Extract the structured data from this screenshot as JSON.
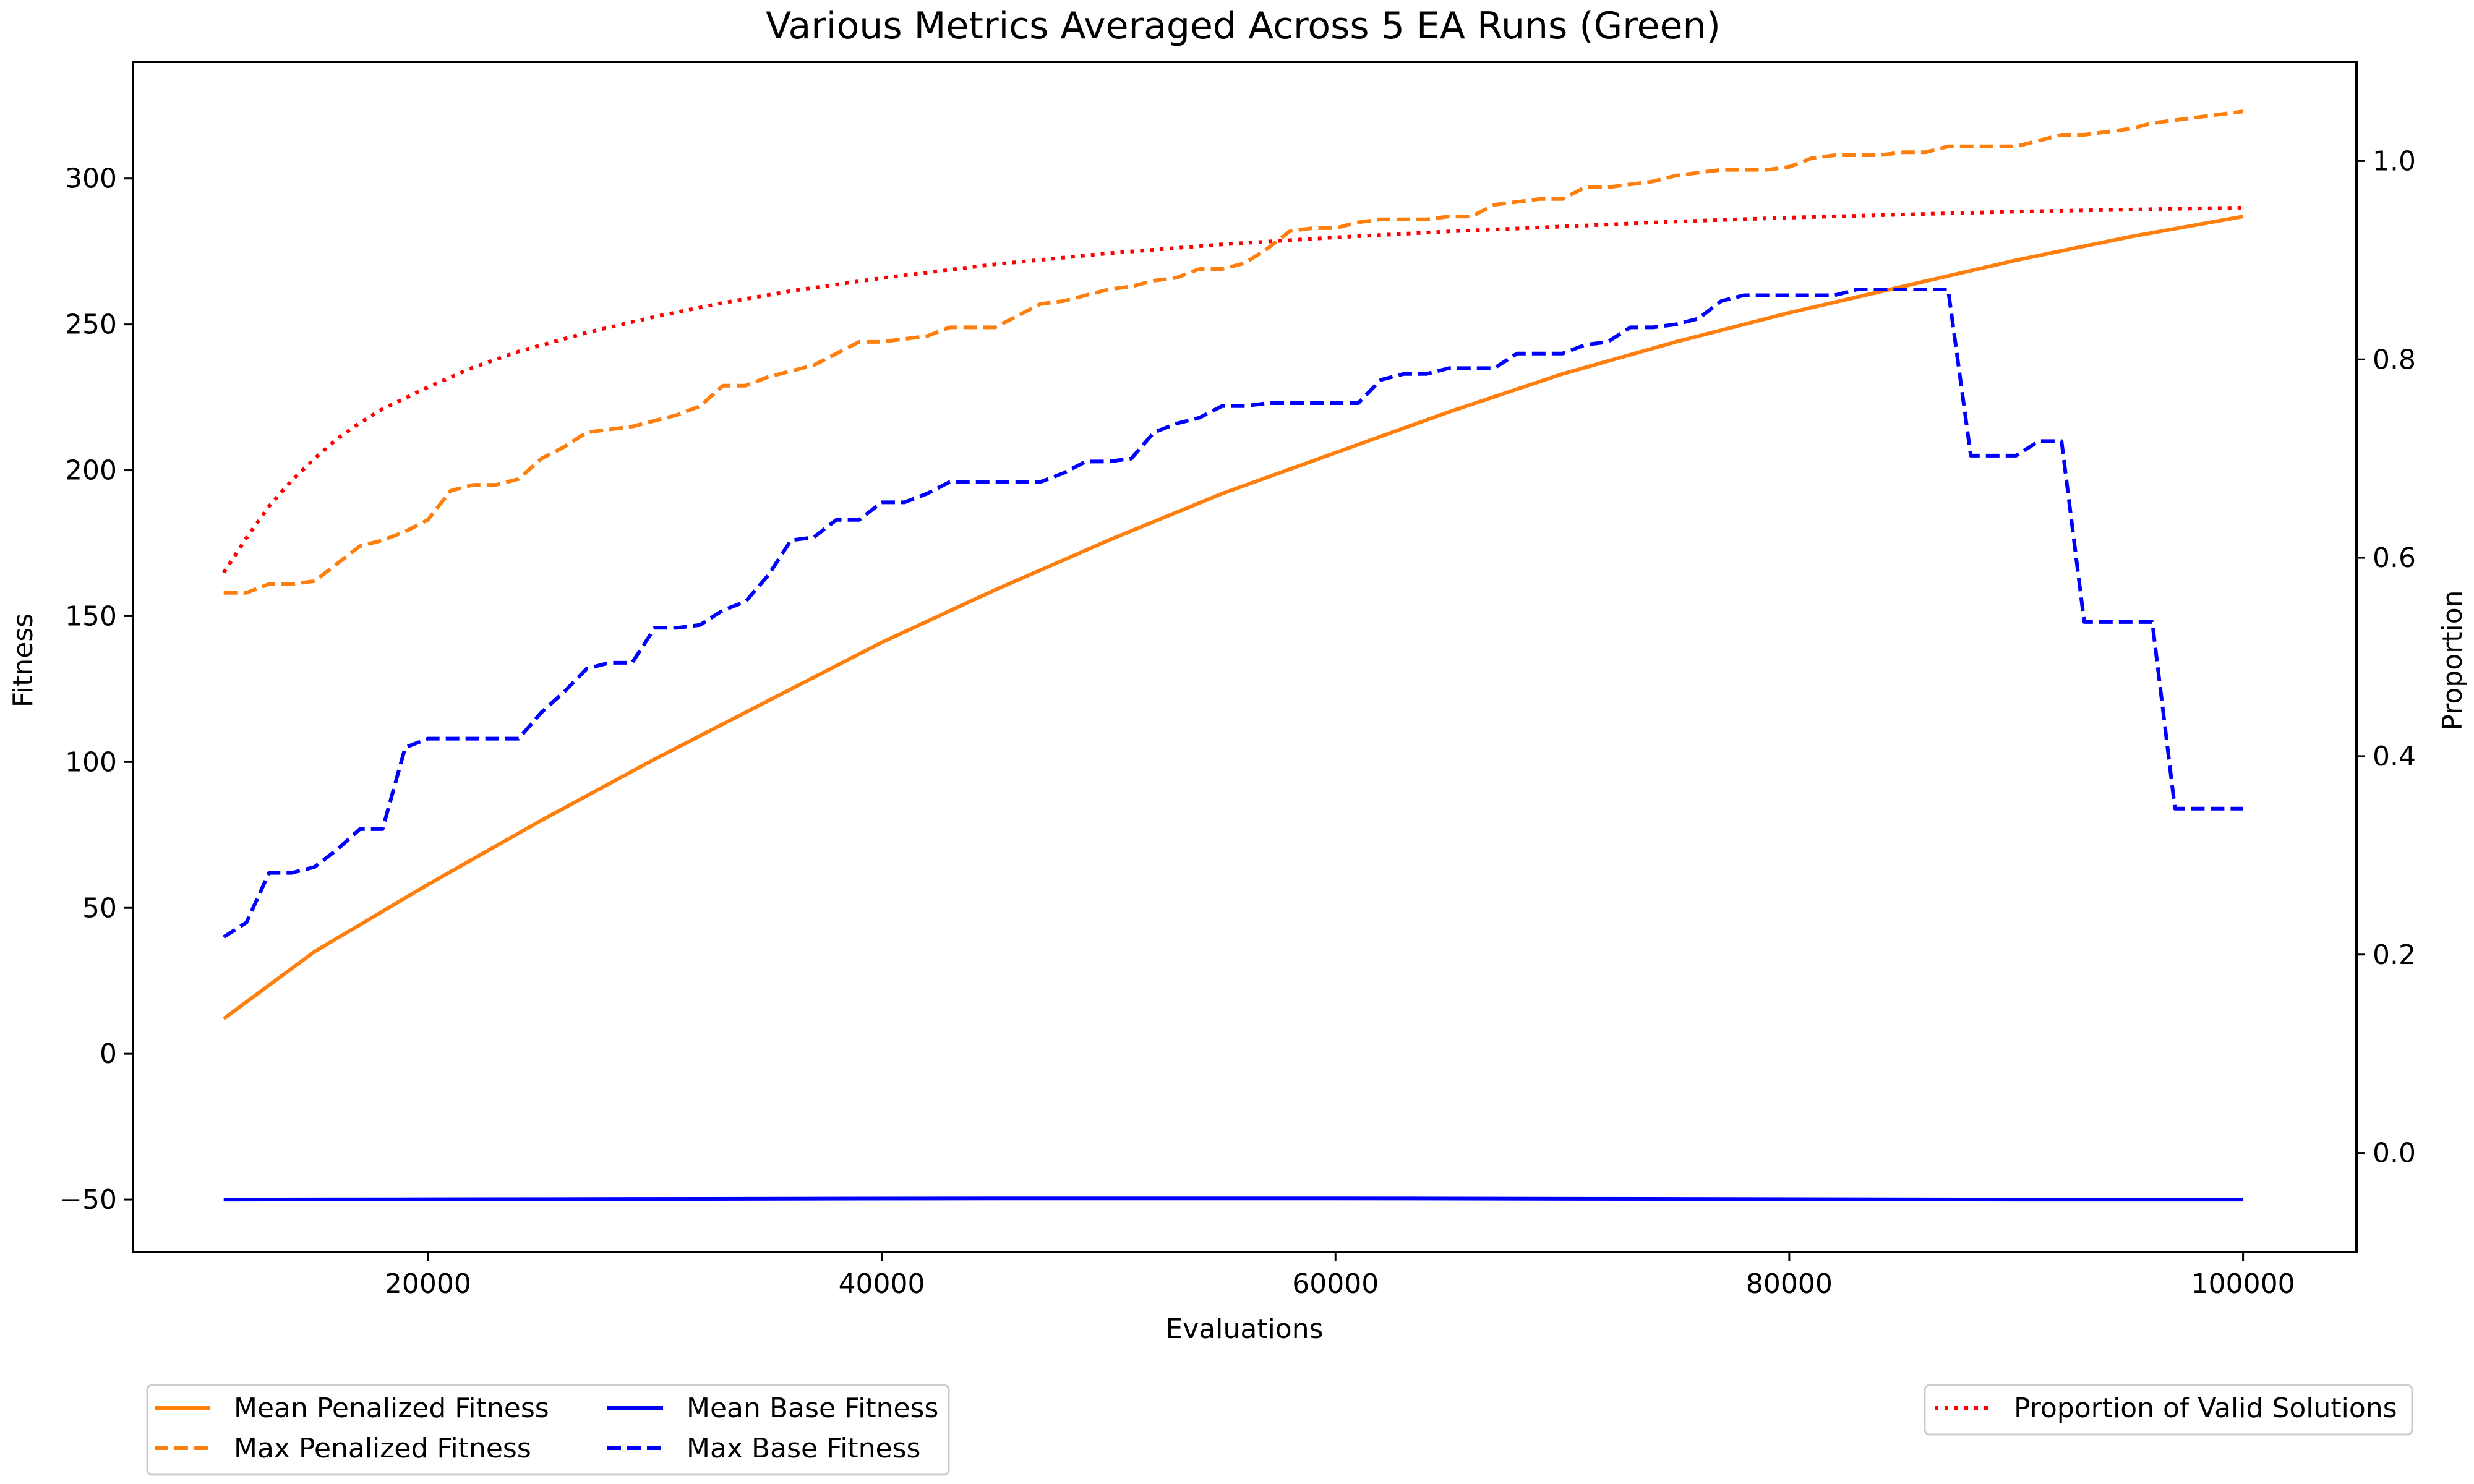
{
  "chart_data": {
    "type": "line",
    "title": "Various Metrics Averaged Across 5 EA Runs (Green)",
    "xlabel": "Evaluations",
    "ylabel": "Fitness",
    "y2label": "Proportion",
    "xlim": [
      7000,
      105000
    ],
    "ylim": [
      -68,
      340
    ],
    "y2lim": [
      -0.1,
      1.1
    ],
    "xticks": [
      20000,
      40000,
      60000,
      80000,
      100000
    ],
    "yticks": [
      -50,
      0,
      50,
      100,
      150,
      200,
      250,
      300
    ],
    "y2ticks": [
      0.0,
      0.2,
      0.4,
      0.6,
      0.8,
      1.0
    ],
    "grid": false,
    "colors": {
      "orange": "#ff7f0e",
      "blue": "#0000ff",
      "red": "#ff0000"
    },
    "series": [
      {
        "name": "Mean Penalized Fitness",
        "axis": "left",
        "color": "#ff7f0e",
        "style": "solid",
        "x": [
          11000,
          15000,
          20000,
          25000,
          30000,
          35000,
          40000,
          45000,
          50000,
          55000,
          60000,
          65000,
          70000,
          75000,
          80000,
          85000,
          90000,
          95000,
          100000
        ],
        "values": [
          12,
          35,
          58,
          80,
          101,
          121,
          141,
          159,
          176,
          192,
          206,
          220,
          233,
          244,
          254,
          263,
          272,
          280,
          287
        ]
      },
      {
        "name": "Max Penalized Fitness",
        "axis": "left",
        "color": "#ff7f0e",
        "style": "dashed",
        "x": [
          11000,
          12000,
          13000,
          14000,
          15000,
          16000,
          17000,
          18000,
          19000,
          20000,
          21000,
          22000,
          23000,
          24000,
          25000,
          26000,
          27000,
          28000,
          29000,
          30000,
          31000,
          32000,
          33000,
          34000,
          35000,
          36000,
          37000,
          38000,
          39000,
          40000,
          41000,
          42000,
          43000,
          44000,
          45000,
          46000,
          47000,
          48000,
          49000,
          50000,
          51000,
          52000,
          53000,
          54000,
          55000,
          56000,
          57000,
          58000,
          59000,
          60000,
          61000,
          62000,
          63000,
          64000,
          65000,
          66000,
          67000,
          68000,
          69000,
          70000,
          71000,
          72000,
          73000,
          74000,
          75000,
          76000,
          77000,
          78000,
          79000,
          80000,
          81000,
          82000,
          83000,
          84000,
          85000,
          86000,
          87000,
          88000,
          89000,
          90000,
          91000,
          92000,
          93000,
          94000,
          95000,
          96000,
          97000,
          98000,
          99000,
          100000
        ],
        "values": [
          158,
          158,
          161,
          161,
          162,
          168,
          174,
          176,
          179,
          183,
          193,
          195,
          195,
          197,
          204,
          208,
          213,
          214,
          215,
          217,
          219,
          222,
          229,
          229,
          232,
          234,
          236,
          240,
          244,
          244,
          245,
          246,
          249,
          249,
          249,
          253,
          257,
          258,
          260,
          262,
          263,
          265,
          266,
          269,
          269,
          271,
          276,
          282,
          283,
          283,
          285,
          286,
          286,
          286,
          287,
          287,
          291,
          292,
          293,
          293,
          297,
          297,
          298,
          299,
          301,
          302,
          303,
          303,
          303,
          304,
          307,
          308,
          308,
          308,
          309,
          309,
          311,
          311,
          311,
          311,
          313,
          315,
          315,
          316,
          317,
          319,
          320,
          321,
          322,
          323
        ]
      },
      {
        "name": "Mean Base Fitness",
        "axis": "left",
        "color": "#0000ff",
        "style": "solid",
        "x": [
          11000,
          30000,
          45000,
          60000,
          75000,
          90000,
          100000
        ],
        "values": [
          -50,
          -49.8,
          -49.6,
          -49.6,
          -49.8,
          -50,
          -50
        ]
      },
      {
        "name": "Max Base Fitness",
        "axis": "left",
        "color": "#0000ff",
        "style": "dashed",
        "x": [
          11000,
          12000,
          13000,
          14000,
          15000,
          16000,
          17000,
          18000,
          19000,
          20000,
          21000,
          22000,
          23000,
          24000,
          25000,
          26000,
          27000,
          28000,
          29000,
          30000,
          31000,
          32000,
          33000,
          34000,
          35000,
          36000,
          37000,
          38000,
          39000,
          40000,
          41000,
          42000,
          43000,
          44000,
          45000,
          46000,
          47000,
          48000,
          49000,
          50000,
          51000,
          52000,
          53000,
          54000,
          55000,
          56000,
          57000,
          58000,
          59000,
          60000,
          61000,
          62000,
          63000,
          64000,
          65000,
          66000,
          67000,
          68000,
          69000,
          70000,
          71000,
          72000,
          73000,
          74000,
          75000,
          76000,
          77000,
          78000,
          79000,
          80000,
          81000,
          82000,
          83000,
          84000,
          85000,
          86000,
          87000,
          88000,
          89000,
          90000,
          91000,
          92000,
          93000,
          94000,
          95000,
          96000,
          97000,
          98000,
          99000,
          100000
        ],
        "values": [
          40,
          45,
          62,
          62,
          64,
          70,
          77,
          77,
          105,
          108,
          108,
          108,
          108,
          108,
          117,
          124,
          132,
          134,
          134,
          146,
          146,
          147,
          152,
          155,
          164,
          176,
          177,
          183,
          183,
          189,
          189,
          192,
          196,
          196,
          196,
          196,
          196,
          199,
          203,
          203,
          204,
          213,
          216,
          218,
          222,
          222,
          223,
          223,
          223,
          223,
          223,
          231,
          233,
          233,
          235,
          235,
          235,
          240,
          240,
          240,
          243,
          244,
          249,
          249,
          250,
          252,
          258,
          260,
          260,
          260,
          260,
          260,
          262,
          262,
          262,
          262,
          262,
          205,
          205,
          205,
          210,
          210,
          148,
          148,
          148,
          148,
          84,
          84,
          84,
          84
        ]
      },
      {
        "name": "Proportion of Valid Solutions",
        "axis": "right",
        "color": "#ff0000",
        "style": "dotted",
        "x": [
          11000,
          12000,
          13000,
          14000,
          15000,
          16000,
          17000,
          18000,
          20000,
          22000,
          24000,
          27000,
          30000,
          33000,
          36000,
          40000,
          45000,
          50000,
          55000,
          60000,
          65000,
          70000,
          75000,
          80000,
          85000,
          90000,
          95000,
          100000
        ],
        "values": [
          0.585,
          0.62,
          0.652,
          0.678,
          0.7,
          0.72,
          0.736,
          0.75,
          0.772,
          0.792,
          0.808,
          0.827,
          0.843,
          0.857,
          0.869,
          0.882,
          0.896,
          0.907,
          0.916,
          0.923,
          0.929,
          0.934,
          0.939,
          0.943,
          0.946,
          0.949,
          0.951,
          0.953
        ]
      }
    ],
    "legend_left": {
      "placement": "below-left",
      "entries": [
        "Mean Penalized Fitness",
        "Max Penalized Fitness",
        "Mean Base Fitness",
        "Max Base Fitness"
      ]
    },
    "legend_right": {
      "placement": "below-right",
      "entries": [
        "Proportion of Valid Solutions"
      ]
    }
  }
}
